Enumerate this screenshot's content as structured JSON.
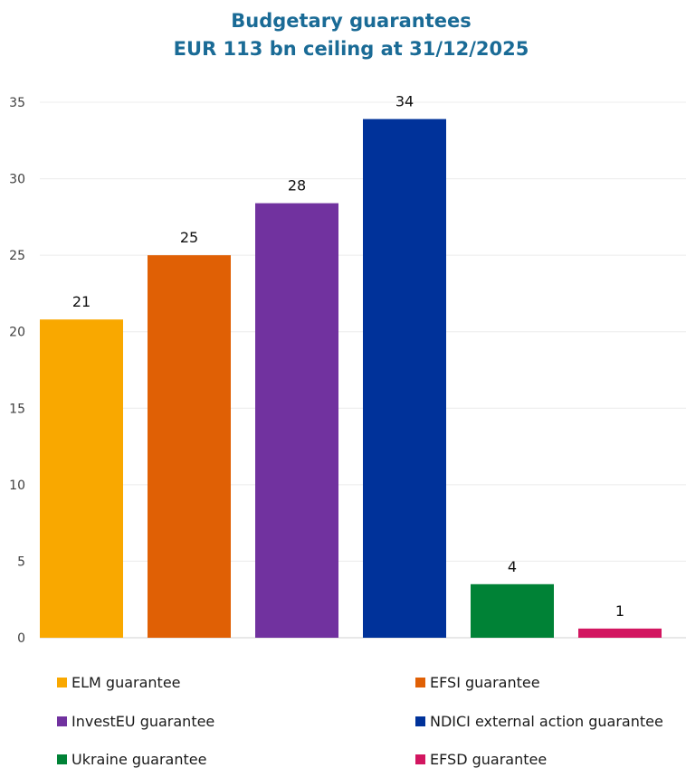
{
  "chart_data": {
    "type": "bar",
    "title_line1": "Budgetary guarantees",
    "title_line2": "EUR 113 bn ceiling at 31/12/2025",
    "categories": [
      "ELM guarantee",
      "EFSI guarantee",
      "InvestEU guarantee",
      "NDICI external action guarantee",
      "Ukraine guarantee",
      "EFSD guarantee"
    ],
    "values": [
      20.8,
      25.0,
      28.4,
      33.9,
      3.5,
      0.6
    ],
    "data_labels": [
      "21",
      "25",
      "28",
      "34",
      "4",
      "1"
    ],
    "colors": [
      "#f9a800",
      "#e06005",
      "#71329f",
      "#00329a",
      "#008236",
      "#d21660"
    ],
    "ylim": [
      0,
      35
    ],
    "yticks": [
      "0",
      "5",
      "10",
      "15",
      "20",
      "25",
      "30",
      "35"
    ],
    "grid": true,
    "legend_position": "bottom"
  }
}
